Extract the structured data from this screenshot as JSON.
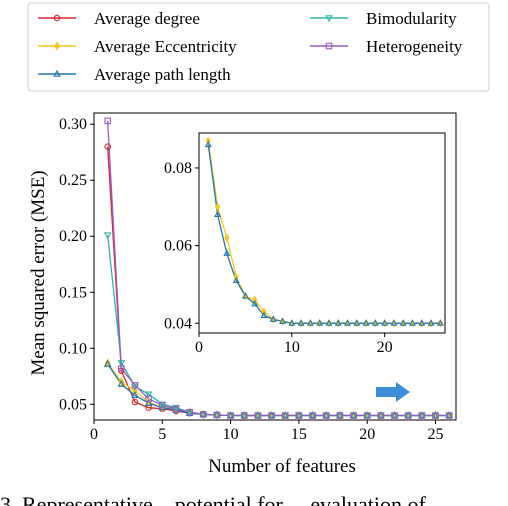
{
  "chart_data": {
    "type": "line",
    "xlabel": "Number of features",
    "ylabel": "Mean squared error (MSE)",
    "xlim": [
      0,
      26.5
    ],
    "ylim": [
      0.036,
      0.31
    ],
    "xticks": [
      0,
      5,
      10,
      15,
      20,
      25
    ],
    "yticks": [
      0.05,
      0.1,
      0.15,
      0.2,
      0.25,
      0.3
    ],
    "legend_position": "top",
    "series": [
      {
        "name": "Average degree",
        "color": "#d62728",
        "marker": "circle",
        "x": [
          1,
          2,
          3,
          4,
          5,
          6,
          7,
          8,
          9,
          10,
          11,
          12,
          13,
          14,
          15,
          16,
          17,
          18,
          19,
          20,
          21,
          22,
          23,
          24,
          25,
          26
        ],
        "y": [
          0.28,
          0.08,
          0.052,
          0.047,
          0.046,
          0.044,
          0.042,
          0.041,
          0.0405,
          0.04,
          0.04,
          0.04,
          0.04,
          0.04,
          0.04,
          0.04,
          0.04,
          0.04,
          0.04,
          0.04,
          0.04,
          0.04,
          0.04,
          0.04,
          0.04,
          0.04
        ]
      },
      {
        "name": "Average Eccentricity",
        "color": "#f5c518",
        "marker": "diamond",
        "x": [
          1,
          2,
          3,
          4,
          5,
          6,
          7,
          8,
          9,
          10,
          11,
          12,
          13,
          14,
          15,
          16,
          17,
          18,
          19,
          20,
          21,
          22,
          23,
          24,
          25,
          26
        ],
        "y": [
          0.087,
          0.07,
          0.062,
          0.052,
          0.047,
          0.046,
          0.043,
          0.041,
          0.0405,
          0.04,
          0.04,
          0.04,
          0.04,
          0.04,
          0.04,
          0.04,
          0.04,
          0.04,
          0.04,
          0.04,
          0.04,
          0.04,
          0.04,
          0.04,
          0.04,
          0.04
        ]
      },
      {
        "name": "Average path length",
        "color": "#1f77b4",
        "marker": "triangle-up",
        "x": [
          1,
          2,
          3,
          4,
          5,
          6,
          7,
          8,
          9,
          10,
          11,
          12,
          13,
          14,
          15,
          16,
          17,
          18,
          19,
          20,
          21,
          22,
          23,
          24,
          25,
          26
        ],
        "y": [
          0.086,
          0.068,
          0.058,
          0.051,
          0.047,
          0.045,
          0.042,
          0.041,
          0.0405,
          0.04,
          0.04,
          0.04,
          0.04,
          0.04,
          0.04,
          0.04,
          0.04,
          0.04,
          0.04,
          0.04,
          0.04,
          0.04,
          0.04,
          0.04,
          0.04,
          0.04
        ]
      },
      {
        "name": "Bimodularity",
        "color": "#2ab7a9",
        "marker": "triangle-down",
        "x": [
          1,
          2,
          3,
          4,
          5,
          6,
          7,
          8,
          9,
          10,
          11,
          12,
          13,
          14,
          15,
          16,
          17,
          18,
          19,
          20,
          21,
          22,
          23,
          24,
          25,
          26
        ],
        "y": [
          0.201,
          0.087,
          0.066,
          0.059,
          0.05,
          0.047,
          0.043,
          0.041,
          0.0405,
          0.04,
          0.04,
          0.04,
          0.04,
          0.04,
          0.04,
          0.04,
          0.04,
          0.04,
          0.04,
          0.04,
          0.04,
          0.04,
          0.04,
          0.04,
          0.04,
          0.04
        ]
      },
      {
        "name": "Heterogeneity",
        "color": "#9b59c6",
        "marker": "square",
        "x": [
          1,
          2,
          3,
          4,
          5,
          6,
          7,
          8,
          9,
          10,
          11,
          12,
          13,
          14,
          15,
          16,
          17,
          18,
          19,
          20,
          21,
          22,
          23,
          24,
          25,
          26
        ],
        "y": [
          0.303,
          0.082,
          0.067,
          0.055,
          0.049,
          0.046,
          0.043,
          0.041,
          0.0405,
          0.04,
          0.04,
          0.04,
          0.04,
          0.04,
          0.04,
          0.04,
          0.04,
          0.04,
          0.04,
          0.04,
          0.04,
          0.04,
          0.04,
          0.04,
          0.04,
          0.04
        ]
      }
    ],
    "inset": {
      "xlim": [
        0,
        26.5
      ],
      "ylim": [
        0.0375,
        0.089
      ],
      "xticks": [
        0,
        10,
        20
      ],
      "yticks": [
        0.04,
        0.06,
        0.08
      ],
      "series": [
        {
          "name": "Average Eccentricity",
          "color": "#f5c518",
          "marker": "diamond",
          "x": [
            1,
            2,
            3,
            4,
            5,
            6,
            7,
            8,
            9,
            10,
            11,
            12,
            13,
            14,
            15,
            16,
            17,
            18,
            19,
            20,
            21,
            22,
            23,
            24,
            25,
            26
          ],
          "y": [
            0.087,
            0.07,
            0.062,
            0.052,
            0.047,
            0.046,
            0.043,
            0.041,
            0.0405,
            0.04,
            0.04,
            0.04,
            0.04,
            0.04,
            0.04,
            0.04,
            0.04,
            0.04,
            0.04,
            0.04,
            0.04,
            0.04,
            0.04,
            0.04,
            0.04,
            0.04
          ]
        },
        {
          "name": "Average path length",
          "color": "#1f77b4",
          "marker": "triangle-up",
          "x": [
            1,
            2,
            3,
            4,
            5,
            6,
            7,
            8,
            9,
            10,
            11,
            12,
            13,
            14,
            15,
            16,
            17,
            18,
            19,
            20,
            21,
            22,
            23,
            24,
            25,
            26
          ],
          "y": [
            0.086,
            0.068,
            0.058,
            0.051,
            0.047,
            0.045,
            0.042,
            0.041,
            0.0405,
            0.04,
            0.04,
            0.04,
            0.04,
            0.04,
            0.04,
            0.04,
            0.04,
            0.04,
            0.04,
            0.04,
            0.04,
            0.04,
            0.04,
            0.04,
            0.04,
            0.04
          ]
        }
      ]
    },
    "arrow_color": "#3a8fd6"
  },
  "caption": "3.  Representative... potential for ... evaluation of"
}
